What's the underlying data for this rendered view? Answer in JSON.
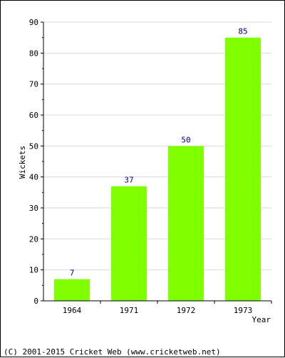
{
  "chart_data": {
    "type": "bar",
    "categories": [
      "1964",
      "1971",
      "1972",
      "1973"
    ],
    "values": [
      7,
      37,
      50,
      85
    ],
    "xlabel": "Year",
    "ylabel": "Wickets",
    "ylim": [
      0,
      90
    ],
    "ytick_step": 10,
    "grid": true,
    "bar_color": "#80ff00",
    "value_label_color": "#000080"
  },
  "footer": {
    "copyright": "(C) 2001-2015 Cricket Web (www.cricketweb.net)"
  }
}
